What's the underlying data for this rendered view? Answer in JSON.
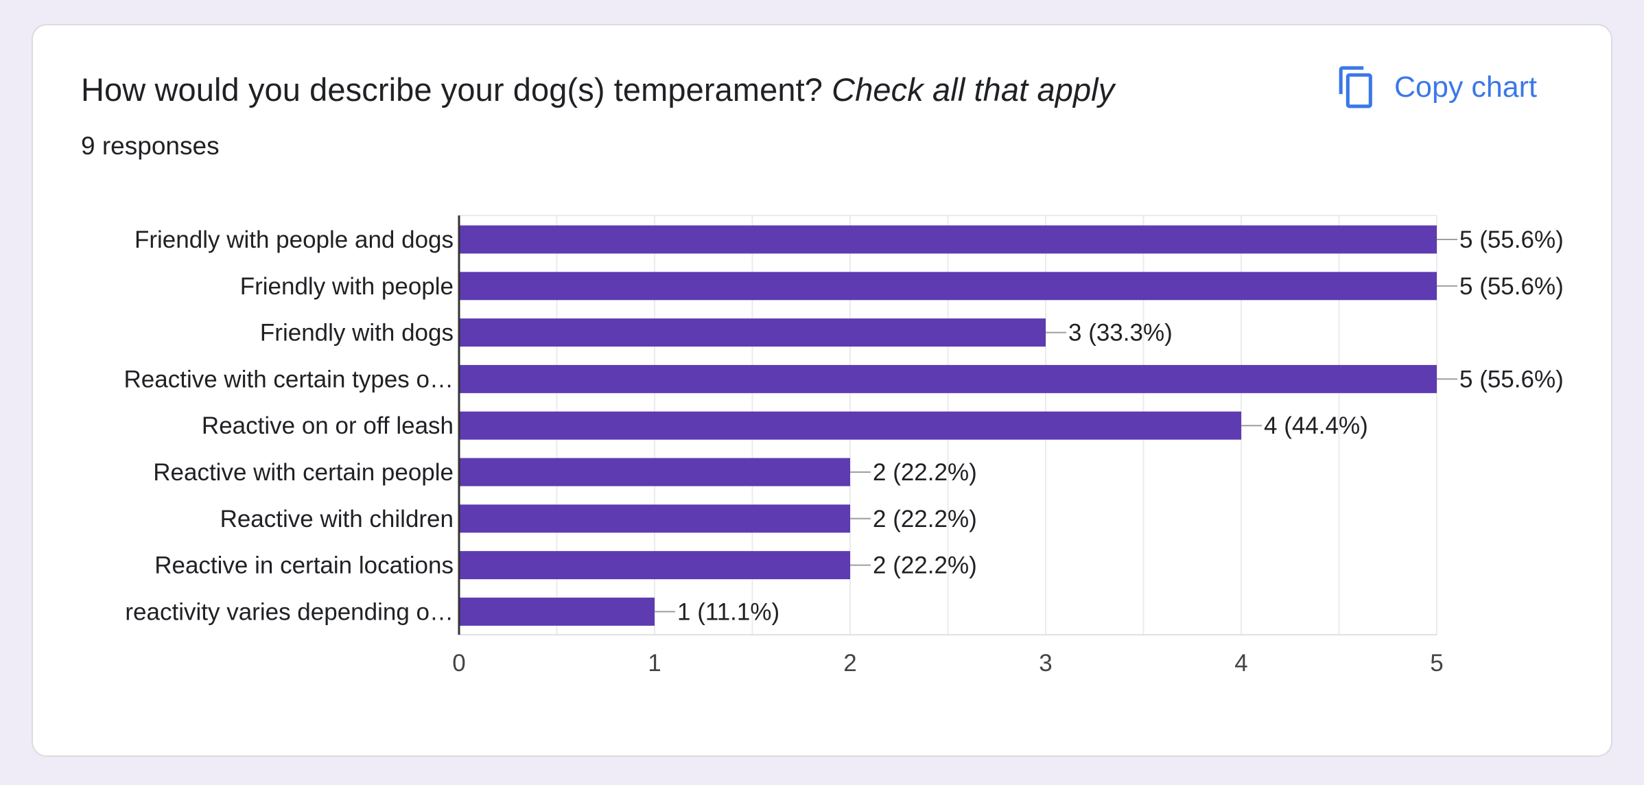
{
  "header": {
    "title_main": "How would you describe your dog(s) temperament? ",
    "title_italic": "Check all that apply",
    "responses": "9 responses",
    "copy_label": "Copy chart"
  },
  "colors": {
    "bar": "#5e3bb0",
    "grid": "#ebebeb",
    "axis": "#333333",
    "leader": "#9e9e9e",
    "text": "#202124",
    "accent": "#3b78e7"
  },
  "icons": {
    "copy": "copy-icon"
  },
  "chart_data": {
    "type": "bar",
    "orientation": "horizontal",
    "categories": [
      "Friendly with people and dogs",
      "Friendly with people",
      "Friendly with dogs",
      "Reactive with certain types o…",
      "Reactive on or off leash",
      "Reactive with certain people",
      "Reactive with children",
      "Reactive in certain locations",
      "reactivity varies depending o…"
    ],
    "values": [
      5,
      5,
      3,
      5,
      4,
      2,
      2,
      2,
      1
    ],
    "value_labels": [
      "5 (55.6%)",
      "5 (55.6%)",
      "3 (33.3%)",
      "5 (55.6%)",
      "4 (44.4%)",
      "2 (22.2%)",
      "2 (22.2%)",
      "2 (22.2%)",
      "1 (11.1%)"
    ],
    "xlim": [
      0,
      5
    ],
    "x_ticks": [
      "0",
      "1",
      "2",
      "3",
      "4",
      "5"
    ],
    "grid": true
  }
}
